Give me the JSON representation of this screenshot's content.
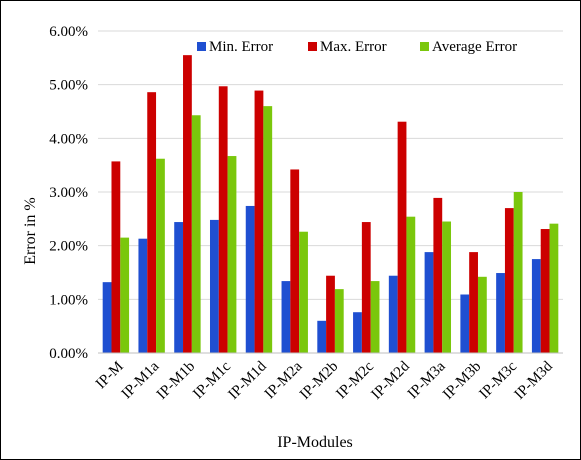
{
  "chart_data": {
    "type": "bar",
    "title": "",
    "xlabel": "IP-Modules",
    "ylabel": "Error in %",
    "ylim": [
      0,
      6
    ],
    "yticks": [
      0,
      1,
      2,
      3,
      4,
      5,
      6
    ],
    "ytick_labels": [
      "0.00%",
      "1.00%",
      "2.00%",
      "3.00%",
      "4.00%",
      "5.00%",
      "6.00%"
    ],
    "grid": true,
    "legend_position": "top",
    "categories": [
      "IP-M",
      "IP-M1a",
      "IP-M1b",
      "IP-M1c",
      "IP-M1d",
      "IP-M2a",
      "IP-M2b",
      "IP-M2c",
      "IP-M2d",
      "IP-M3a",
      "IP-M3b",
      "IP-M3c",
      "IP-M3d"
    ],
    "series": [
      {
        "name": "Min. Error",
        "color": "#1f4fd1",
        "values": [
          1.32,
          2.13,
          2.44,
          2.48,
          2.74,
          1.34,
          0.6,
          0.76,
          1.44,
          1.88,
          1.09,
          1.49,
          1.75
        ]
      },
      {
        "name": "Max. Error",
        "color": "#cc0000",
        "values": [
          3.57,
          4.86,
          5.55,
          4.97,
          4.89,
          3.42,
          1.44,
          2.44,
          4.31,
          2.89,
          1.88,
          2.7,
          2.31
        ]
      },
      {
        "name": "Average Error",
        "color": "#7ac70c",
        "values": [
          2.15,
          3.62,
          4.43,
          3.67,
          4.6,
          2.26,
          1.19,
          1.34,
          2.54,
          2.45,
          1.42,
          3.0,
          2.41
        ]
      }
    ]
  }
}
